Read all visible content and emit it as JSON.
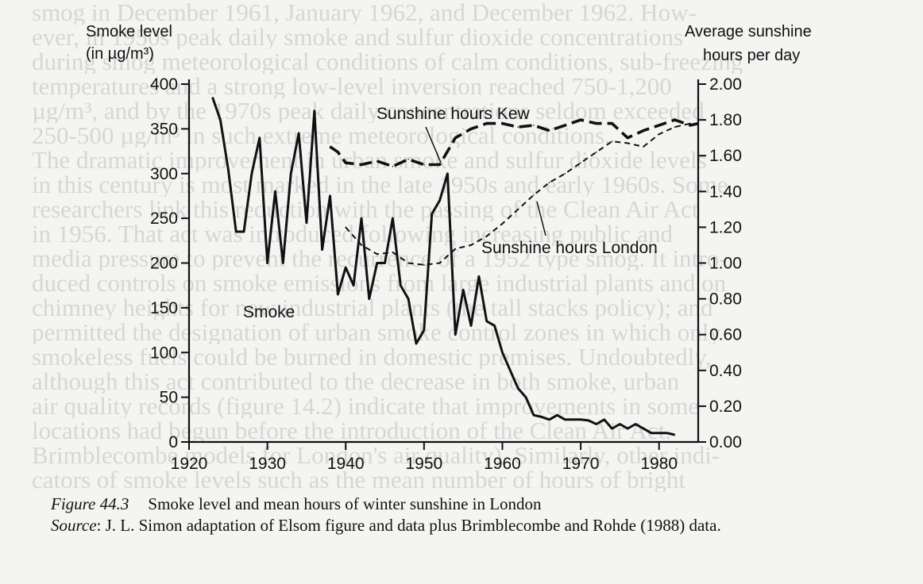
{
  "background_lines": [
    "smog in December 1961, January 1962, and December 1962. How-",
    "ever, in 1950s peak daily smoke and sulfur dioxide concentrations",
    "during smog meteorological conditions of calm conditions, sub-freezing",
    "temperatures and a strong low-level inversion reached 750-1,200",
    "µg/m³, and by the 1970s peak daily concentrations seldom exceeded",
    "250-500 µg/m³ in such extreme meteorological conditions.",
    "The dramatic improvement in urban smoke and sulfur dioxide levels",
    "in this century is most marked in the late 1950s and early 1960s. Some",
    "researchers link this reduction with the passing of the Clean Air Act",
    "in 1956. That act was introduced following increasing public and",
    "media pressure to prevent the recurrence of a 1952 type smog. It intro-",
    "duced controls on smoke emissions from large industrial plants and on",
    "chimney heights for new industrial plants (the tall stacks policy); and",
    "permitted the designation of urban smoke control zones in which only",
    "smokeless fuels could be burned in domestic premises. Undoubtedly,",
    "although this act contributed to the decrease in both smoke, urban",
    "air quality records (figure 14.2) indicate that improvements in some",
    "locations had begun before the introduction of the Clean Air Act.",
    "Brimblecombe models for London's air quality). Similarly, other indi-",
    "cators of smoke levels such as the mean number of hours of bright"
  ],
  "chart_data": {
    "type": "line",
    "x_axis": {
      "range": [
        1920,
        1985
      ],
      "ticks": [
        1920,
        1930,
        1940,
        1950,
        1960,
        1970,
        1980
      ]
    },
    "y_left": {
      "label_line1": "Smoke level",
      "label_line2": "(in µg/m³)",
      "range": [
        0,
        400
      ],
      "ticks": [
        0,
        50,
        100,
        150,
        200,
        250,
        300,
        350,
        400
      ],
      "tick_labels": [
        "0",
        "50",
        "100",
        "150",
        "200",
        "250",
        "300",
        "350",
        "400"
      ]
    },
    "y_right": {
      "label_line1": "Average sunshine",
      "label_line2": "hours per day",
      "range": [
        0,
        2.0
      ],
      "ticks": [
        0,
        0.2,
        0.4,
        0.6,
        0.8,
        1.0,
        1.2,
        1.4,
        1.6,
        1.8,
        2.0
      ],
      "tick_labels": [
        "0.00",
        "0.20",
        "0.40",
        "0.60",
        "0.80",
        "1.00",
        "1.20",
        "1.40",
        "1.60",
        "1.80",
        "2.00"
      ]
    },
    "series": [
      {
        "name": "Smoke",
        "axis": "left",
        "style": "solid",
        "points": [
          [
            1923,
            385
          ],
          [
            1924,
            360
          ],
          [
            1925,
            305
          ],
          [
            1926,
            235
          ],
          [
            1927,
            235
          ],
          [
            1928,
            300
          ],
          [
            1929,
            340
          ],
          [
            1930,
            200
          ],
          [
            1931,
            280
          ],
          [
            1932,
            200
          ],
          [
            1933,
            300
          ],
          [
            1934,
            345
          ],
          [
            1935,
            245
          ],
          [
            1936,
            370
          ],
          [
            1937,
            215
          ],
          [
            1938,
            275
          ],
          [
            1939,
            165
          ],
          [
            1940,
            195
          ],
          [
            1941,
            175
          ],
          [
            1942,
            250
          ],
          [
            1943,
            160
          ],
          [
            1944,
            200
          ],
          [
            1945,
            200
          ],
          [
            1946,
            250
          ],
          [
            1947,
            175
          ],
          [
            1948,
            160
          ],
          [
            1949,
            110
          ],
          [
            1950,
            125
          ],
          [
            1951,
            255
          ],
          [
            1952,
            270
          ],
          [
            1953,
            300
          ],
          [
            1954,
            120
          ],
          [
            1955,
            170
          ],
          [
            1956,
            130
          ],
          [
            1957,
            185
          ],
          [
            1958,
            135
          ],
          [
            1959,
            130
          ],
          [
            1960,
            100
          ],
          [
            1961,
            80
          ],
          [
            1962,
            60
          ],
          [
            1963,
            50
          ],
          [
            1964,
            30
          ],
          [
            1965,
            28
          ],
          [
            1966,
            25
          ],
          [
            1967,
            30
          ],
          [
            1968,
            25
          ],
          [
            1969,
            25
          ],
          [
            1970,
            25
          ],
          [
            1971,
            24
          ],
          [
            1972,
            20
          ],
          [
            1973,
            25
          ],
          [
            1974,
            15
          ],
          [
            1975,
            20
          ],
          [
            1976,
            15
          ],
          [
            1977,
            20
          ],
          [
            1978,
            15
          ],
          [
            1979,
            10
          ],
          [
            1980,
            10
          ],
          [
            1981,
            10
          ],
          [
            1982,
            8
          ]
        ]
      },
      {
        "name": "Sunshine hours Kew",
        "axis": "right",
        "style": "dashed-heavy",
        "points": [
          [
            1938,
            1.65
          ],
          [
            1939,
            1.62
          ],
          [
            1940,
            1.56
          ],
          [
            1942,
            1.55
          ],
          [
            1944,
            1.57
          ],
          [
            1946,
            1.54
          ],
          [
            1948,
            1.58
          ],
          [
            1950,
            1.55
          ],
          [
            1952,
            1.55
          ],
          [
            1954,
            1.7
          ],
          [
            1956,
            1.75
          ],
          [
            1958,
            1.78
          ],
          [
            1960,
            1.78
          ],
          [
            1962,
            1.76
          ],
          [
            1964,
            1.77
          ],
          [
            1966,
            1.74
          ],
          [
            1968,
            1.77
          ],
          [
            1970,
            1.8
          ],
          [
            1972,
            1.78
          ],
          [
            1974,
            1.78
          ],
          [
            1976,
            1.7
          ],
          [
            1978,
            1.74
          ],
          [
            1980,
            1.77
          ],
          [
            1982,
            1.8
          ],
          [
            1984,
            1.77
          ],
          [
            1985,
            1.78
          ]
        ]
      },
      {
        "name": "Sunshine hours London",
        "axis": "right",
        "style": "dashed-light",
        "points": [
          [
            1940,
            1.2
          ],
          [
            1942,
            1.1
          ],
          [
            1944,
            1.05
          ],
          [
            1946,
            1.06
          ],
          [
            1948,
            1.0
          ],
          [
            1950,
            0.99
          ],
          [
            1952,
            1.0
          ],
          [
            1954,
            1.08
          ],
          [
            1956,
            1.1
          ],
          [
            1958,
            1.15
          ],
          [
            1960,
            1.22
          ],
          [
            1962,
            1.3
          ],
          [
            1964,
            1.38
          ],
          [
            1966,
            1.45
          ],
          [
            1968,
            1.5
          ],
          [
            1970,
            1.56
          ],
          [
            1972,
            1.62
          ],
          [
            1974,
            1.68
          ],
          [
            1976,
            1.67
          ],
          [
            1978,
            1.65
          ],
          [
            1980,
            1.72
          ],
          [
            1982,
            1.76
          ],
          [
            1984,
            1.78
          ]
        ]
      }
    ],
    "annotations": {
      "smoke": "Smoke",
      "kew": "Sunshine hours Kew",
      "london": "Sunshine hours London"
    },
    "grid": false,
    "legend": "none"
  },
  "caption": {
    "figure_label": "Figure 44.3",
    "title": "Smoke level and mean hours of winter sunshine in London",
    "source_label": "Source",
    "source_text": ": J. L. Simon adaptation of Elsom figure and data plus Brimblecombe and Rohde (1988) data."
  }
}
